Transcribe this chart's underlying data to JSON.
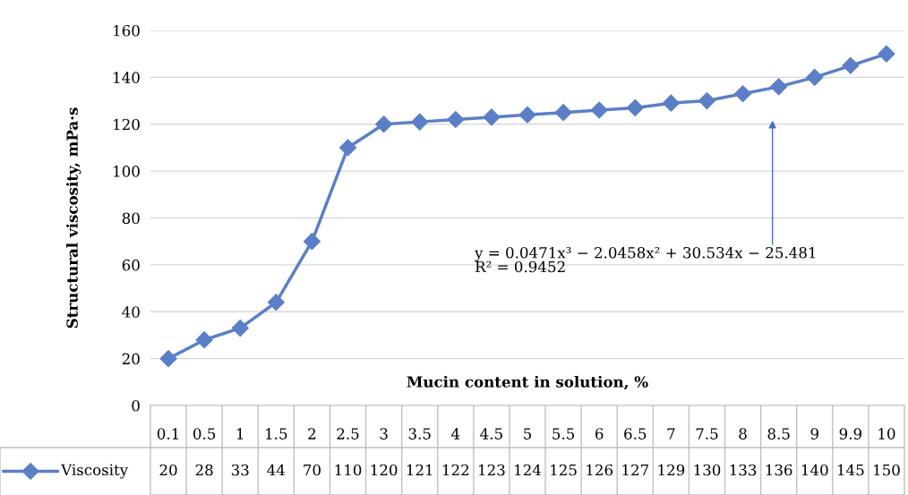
{
  "chart_data": {
    "type": "line",
    "ylabel": "Structural viscosity, mPa·s",
    "xlabel": "Mucin content in solution, %",
    "categories": [
      "0.1",
      "0.5",
      "1",
      "1.5",
      "2",
      "2.5",
      "3",
      "3.5",
      "4",
      "4.5",
      "5",
      "5.5",
      "6",
      "6.5",
      "7",
      "7.5",
      "8",
      "8.5",
      "9",
      "9.9",
      "10"
    ],
    "series": [
      {
        "name": "Viscosity",
        "color": "#5b7fc6",
        "values": [
          20,
          28,
          33,
          44,
          70,
          110,
          120,
          121,
          122,
          123,
          124,
          125,
          126,
          127,
          129,
          130,
          133,
          136,
          140,
          145,
          150
        ]
      }
    ],
    "ylim": [
      0,
      160
    ],
    "yticks": [
      0,
      20,
      40,
      60,
      80,
      100,
      120,
      140,
      160
    ],
    "grid": "y",
    "legend": "bottom",
    "marker": "diamond",
    "line_style": "solid",
    "data_labels": true,
    "annotations": [
      "y = 0.0471x³ − 2.0458x² + 30.534x − 25.481",
      "R² = 0.9452"
    ]
  }
}
